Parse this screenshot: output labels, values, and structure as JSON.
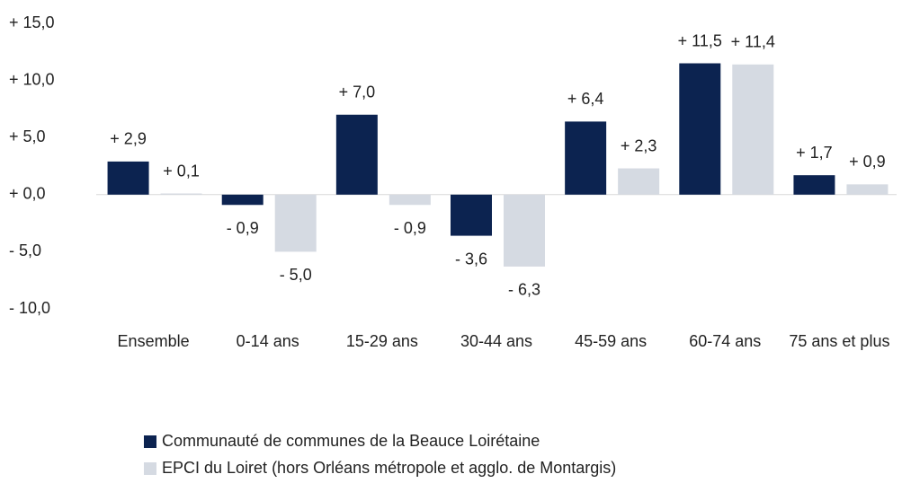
{
  "chart_data": {
    "type": "bar",
    "categories": [
      "Ensemble",
      "0-14 ans",
      "15-29 ans",
      "30-44 ans",
      "45-59 ans",
      "60-74 ans",
      "75 ans et plus"
    ],
    "series": [
      {
        "name": "Communauté de communes de la Beauce Loirétaine",
        "color": "#0c2350",
        "values": [
          2.9,
          -0.9,
          7.0,
          -3.6,
          6.4,
          11.5,
          1.7
        ],
        "value_labels": [
          "+ 2,9",
          "- 0,9",
          "+ 7,0",
          "- 3,6",
          "+ 6,4",
          "+ 11,5",
          "+ 1,7"
        ]
      },
      {
        "name": "EPCI du Loiret (hors Orléans métropole et agglo. de Montargis)",
        "color": "#d5dae2",
        "values": [
          0.1,
          -5.0,
          -0.9,
          -6.3,
          2.3,
          11.4,
          0.9
        ],
        "value_labels": [
          "+ 0,1",
          "- 5,0",
          "- 0,9",
          "- 6,3",
          "+ 2,3",
          "+ 11,4",
          "+ 0,9"
        ]
      }
    ],
    "ylim": [
      -10,
      15
    ],
    "yticks": [
      {
        "value": -10,
        "label": "- 10,0"
      },
      {
        "value": -5,
        "label": "- 5,0"
      },
      {
        "value": 0,
        "label": "+ 0,0"
      },
      {
        "value": 5,
        "label": "+ 5,0"
      },
      {
        "value": 10,
        "label": "+ 10,0"
      },
      {
        "value": 15,
        "label": "+ 15,0"
      }
    ],
    "grid": false,
    "legend": "bottom"
  }
}
